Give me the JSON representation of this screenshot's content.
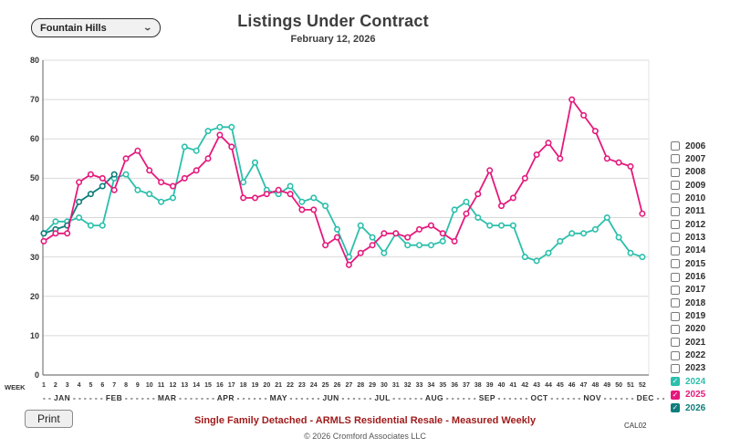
{
  "header": {
    "title": "Listings Under Contract",
    "subtitle": "February 12, 2026"
  },
  "controls": {
    "location_dropdown_value": "Fountain Hills",
    "print_button_label": "Print"
  },
  "legend": {
    "items": [
      {
        "label": "2006",
        "checked": false
      },
      {
        "label": "2007",
        "checked": false
      },
      {
        "label": "2008",
        "checked": false
      },
      {
        "label": "2009",
        "checked": false
      },
      {
        "label": "2010",
        "checked": false
      },
      {
        "label": "2011",
        "checked": false
      },
      {
        "label": "2012",
        "checked": false
      },
      {
        "label": "2013",
        "checked": false
      },
      {
        "label": "2014",
        "checked": false
      },
      {
        "label": "2015",
        "checked": false
      },
      {
        "label": "2016",
        "checked": false
      },
      {
        "label": "2017",
        "checked": false
      },
      {
        "label": "2018",
        "checked": false
      },
      {
        "label": "2019",
        "checked": false
      },
      {
        "label": "2020",
        "checked": false
      },
      {
        "label": "2021",
        "checked": false
      },
      {
        "label": "2022",
        "checked": false
      },
      {
        "label": "2023",
        "checked": false
      },
      {
        "label": "2024",
        "checked": true,
        "color": "#2BBFAC"
      },
      {
        "label": "2025",
        "checked": true,
        "color": "#E5197D"
      },
      {
        "label": "2026",
        "checked": true,
        "color": "#0E7D7B"
      }
    ]
  },
  "axis": {
    "week_axis_title": "WEEK",
    "yticks": [
      0,
      10,
      20,
      30,
      40,
      50,
      60,
      70,
      80
    ],
    "month_line": "- - JAN - - - - - - FEB - - - - - - MAR - - - - - - - APR - - - - - - MAY - - - - - - JUN - - - - - - JUL - - - - - - AUG - - - - - - SEP - - - - - - OCT - - - - - - NOV - - - - - - DEC - -"
  },
  "footer": {
    "subject_line": "Single Family Detached - ARMLS Residential Resale - Measured Weekly",
    "subject_color": "#A11C1C",
    "copyright": "© 2026 Cromford Associates LLC",
    "code": "CAL02"
  },
  "chart_data": {
    "type": "line",
    "title": "Listings Under Contract",
    "subtitle": "February 12, 2026",
    "xlabel": "WEEK",
    "ylabel": "",
    "x": [
      1,
      2,
      3,
      4,
      5,
      6,
      7,
      8,
      9,
      10,
      11,
      12,
      13,
      14,
      15,
      16,
      17,
      18,
      19,
      20,
      21,
      22,
      23,
      24,
      25,
      26,
      27,
      28,
      29,
      30,
      31,
      32,
      33,
      34,
      35,
      36,
      37,
      38,
      39,
      40,
      41,
      42,
      43,
      44,
      45,
      46,
      47,
      48,
      49,
      50,
      51,
      52
    ],
    "ylim": [
      0,
      80
    ],
    "ytick_step": 10,
    "grid": true,
    "legend_position": "right",
    "marker": "open-circle",
    "series": [
      {
        "name": "2024",
        "color": "#2BBFAC",
        "values": [
          36,
          39,
          39,
          40,
          38,
          38,
          50,
          51,
          47,
          46,
          44,
          45,
          58,
          57,
          62,
          63,
          63,
          49,
          54,
          47,
          46,
          48,
          44,
          45,
          43,
          37,
          30,
          38,
          35,
          31,
          36,
          33,
          33,
          33,
          34,
          42,
          44,
          40,
          38,
          38,
          38,
          30,
          29,
          31,
          34,
          36,
          36,
          37,
          40,
          35,
          31,
          30
        ]
      },
      {
        "name": "2025",
        "color": "#E5197D",
        "values": [
          34,
          36,
          36,
          49,
          51,
          50,
          47,
          55,
          57,
          52,
          49,
          48,
          50,
          52,
          55,
          61,
          58,
          45,
          45,
          46,
          47,
          46,
          42,
          42,
          33,
          35,
          28,
          31,
          33,
          36,
          36,
          35,
          37,
          38,
          36,
          34,
          41,
          46,
          52,
          43,
          45,
          50,
          56,
          59,
          55,
          70,
          66,
          62,
          55,
          54,
          53,
          41
        ]
      },
      {
        "name": "2026",
        "color": "#0E7D7B",
        "values": [
          36,
          37,
          38,
          44,
          46,
          48,
          51
        ]
      }
    ]
  }
}
